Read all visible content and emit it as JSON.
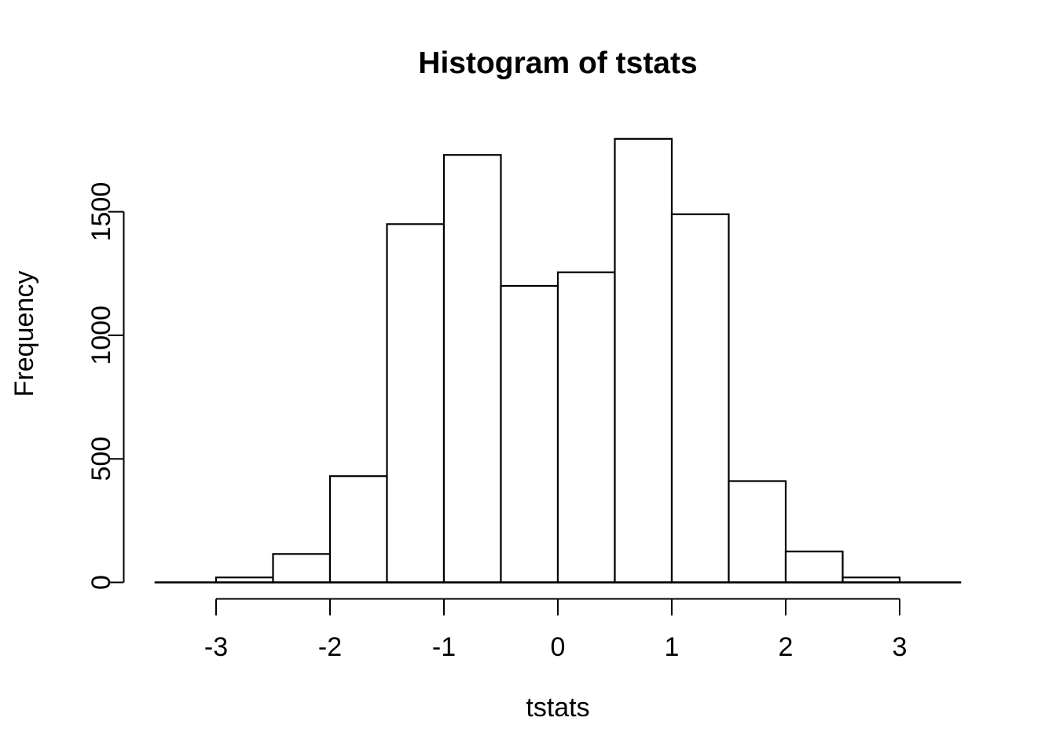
{
  "figure": {
    "title": "Histogram of tstats",
    "xlabel": "tstats",
    "ylabel": "Frequency"
  },
  "chart_data": {
    "type": "bar",
    "subtype": "histogram",
    "title": "Histogram of tstats",
    "xlabel": "tstats",
    "ylabel": "Frequency",
    "bin_edges": [
      -3,
      -2.5,
      -2,
      -1.5,
      -1,
      -0.5,
      0,
      0.5,
      1,
      1.5,
      2,
      2.5,
      3
    ],
    "counts": [
      20,
      115,
      430,
      1450,
      1730,
      1200,
      1255,
      1795,
      1490,
      410,
      125,
      20
    ],
    "x_ticks": [
      -3,
      -2,
      -1,
      0,
      1,
      2,
      3
    ],
    "y_ticks": [
      0,
      500,
      1000,
      1500
    ],
    "xlim": [
      -3.54,
      3.54
    ],
    "ylim": [
      0,
      1860
    ],
    "grid": false,
    "legend": false,
    "bar_fill": "#ffffff",
    "bar_stroke": "#000000",
    "axis_color": "#000000",
    "background": "#ffffff"
  }
}
